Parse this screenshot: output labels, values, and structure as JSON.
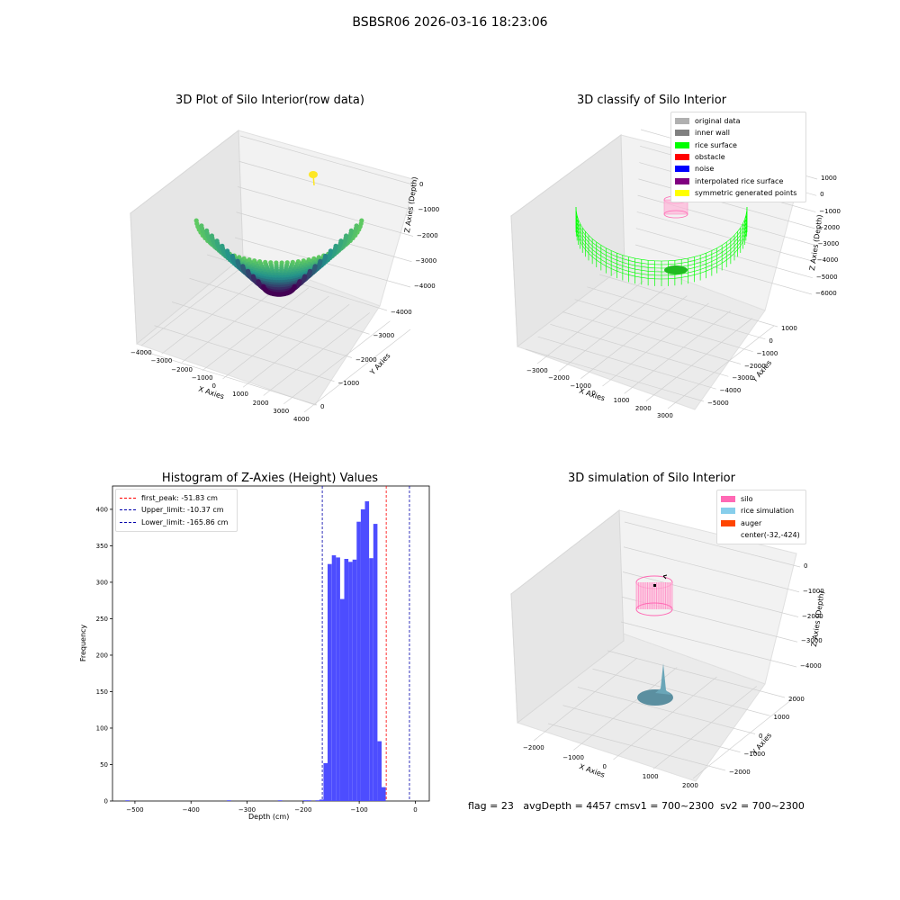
{
  "figure": {
    "suptitle": "BSBSR06 2026-03-16 18:23:06"
  },
  "status": {
    "flag": "flag = 23",
    "avg_depth": "avgDepth = 4457 cm",
    "sv1": "sv1 = 700~2300",
    "sv2": "sv2 = 700~2300"
  },
  "colors": {
    "histogram_bar": "#4d4dff",
    "first_peak_line": "#ff0000",
    "limit_lines": "#0000aa",
    "silo": "#ff69b4",
    "rice_simulation": "#87ceeb",
    "auger": "#ff4500",
    "rice_surface": "#00ff00",
    "raw_low": "#440154",
    "raw_mid": "#21918c",
    "raw_high": "#5ec962"
  },
  "chart_data": [
    {
      "type": "scatter",
      "title": "3D Plot of Silo Interior(row data)",
      "xlabel": "X Axies",
      "ylabel": "Y Axies",
      "zlabel": "Z Axies (Depth)",
      "x_ticks": [
        "−4000",
        "−3000",
        "−2000",
        "−1000",
        "0",
        "1000",
        "2000",
        "3000",
        "4000"
      ],
      "y_ticks": [
        "0",
        "−1000",
        "−2000",
        "−3000",
        "−4000"
      ],
      "z_ticks": [
        "0",
        "−1000",
        "−2000",
        "−3000",
        "−4000"
      ],
      "xlim": [
        -4000,
        4000
      ],
      "ylim": [
        -4500,
        500
      ],
      "zlim": [
        -4700,
        300
      ],
      "grid": true
    },
    {
      "type": "scatter",
      "title": "3D classify of Silo Interior",
      "xlabel": "X Axies",
      "ylabel": "Y Axies",
      "zlabel": "Z Axies (Depth)",
      "x_ticks": [
        "−3000",
        "−2000",
        "−1000",
        "0",
        "1000",
        "2000",
        "3000"
      ],
      "y_ticks": [
        "1000",
        "0",
        "−1000",
        "−2000",
        "−3000",
        "−4000",
        "−5000"
      ],
      "z_ticks": [
        "1000",
        "0",
        "−1000",
        "−2000",
        "−3000",
        "−4000",
        "−5000",
        "−6000"
      ],
      "legend": [
        "original data",
        "inner wall",
        "rice surface",
        "obstacle",
        "noise",
        "interpolated rice surface",
        "symmetric generated points"
      ],
      "legend_colors": [
        "#b0b0b0",
        "#808080",
        "#00ff00",
        "#ff0000",
        "#0000ff",
        "#800080",
        "#ffff00"
      ],
      "legend_position": "top-right",
      "grid": true
    },
    {
      "type": "bar",
      "title": "Histogram of Z-Axies (Height) Values",
      "xlabel": "Depth (cm)",
      "ylabel": "Frequency",
      "xlim": [
        -540,
        25
      ],
      "ylim": [
        0,
        432
      ],
      "x_ticks": [
        -500,
        -400,
        -300,
        -200,
        -100,
        0
      ],
      "y_ticks": [
        0,
        50,
        100,
        150,
        200,
        250,
        300,
        350,
        400
      ],
      "bin_width": 7.4,
      "bins": [
        {
          "x": -517,
          "count": 1
        },
        {
          "x": -336,
          "count": 1
        },
        {
          "x": -245,
          "count": 1
        },
        {
          "x": -200,
          "count": 1
        },
        {
          "x": -193,
          "count": 1
        },
        {
          "x": -178,
          "count": 1
        },
        {
          "x": -171,
          "count": 2
        },
        {
          "x": -163.7,
          "count": 52
        },
        {
          "x": -156.3,
          "count": 325
        },
        {
          "x": -148.9,
          "count": 337
        },
        {
          "x": -141.5,
          "count": 334
        },
        {
          "x": -134.1,
          "count": 277
        },
        {
          "x": -126.7,
          "count": 332
        },
        {
          "x": -119.3,
          "count": 328
        },
        {
          "x": -111.9,
          "count": 331
        },
        {
          "x": -104.5,
          "count": 383
        },
        {
          "x": -97.1,
          "count": 400
        },
        {
          "x": -89.7,
          "count": 411
        },
        {
          "x": -82.3,
          "count": 333
        },
        {
          "x": -74.9,
          "count": 380
        },
        {
          "x": -67.5,
          "count": 82
        },
        {
          "x": -60.1,
          "count": 19
        }
      ],
      "vlines": [
        {
          "name": "first_peak: -51.83 cm",
          "x": -51.83,
          "color": "#ff0000"
        },
        {
          "name": "Upper_limit: -10.37 cm",
          "x": -10.37,
          "color": "#0000aa"
        },
        {
          "name": "Lower_limit: -165.86 cm",
          "x": -165.86,
          "color": "#0000aa"
        }
      ],
      "legend_position": "upper-left",
      "grid": false
    },
    {
      "type": "scatter",
      "title": "3D simulation of Silo Interior",
      "xlabel": "X Axies",
      "ylabel": "Y Axies",
      "zlabel": "Z Axies (Depth)",
      "x_ticks": [
        "−2000",
        "−1000",
        "0",
        "1000",
        "2000"
      ],
      "y_ticks": [
        "2000",
        "1000",
        "0",
        "−1000",
        "−2000"
      ],
      "z_ticks": [
        "0",
        "−1000",
        "−2000",
        "−3000",
        "−4000"
      ],
      "legend": [
        "silo",
        "rice simulation",
        "auger",
        "center(-32,-424)"
      ],
      "legend_colors": [
        "#ff69b4",
        "#87ceeb",
        "#ff4500",
        ""
      ],
      "legend_position": "top-right",
      "grid": true
    }
  ]
}
